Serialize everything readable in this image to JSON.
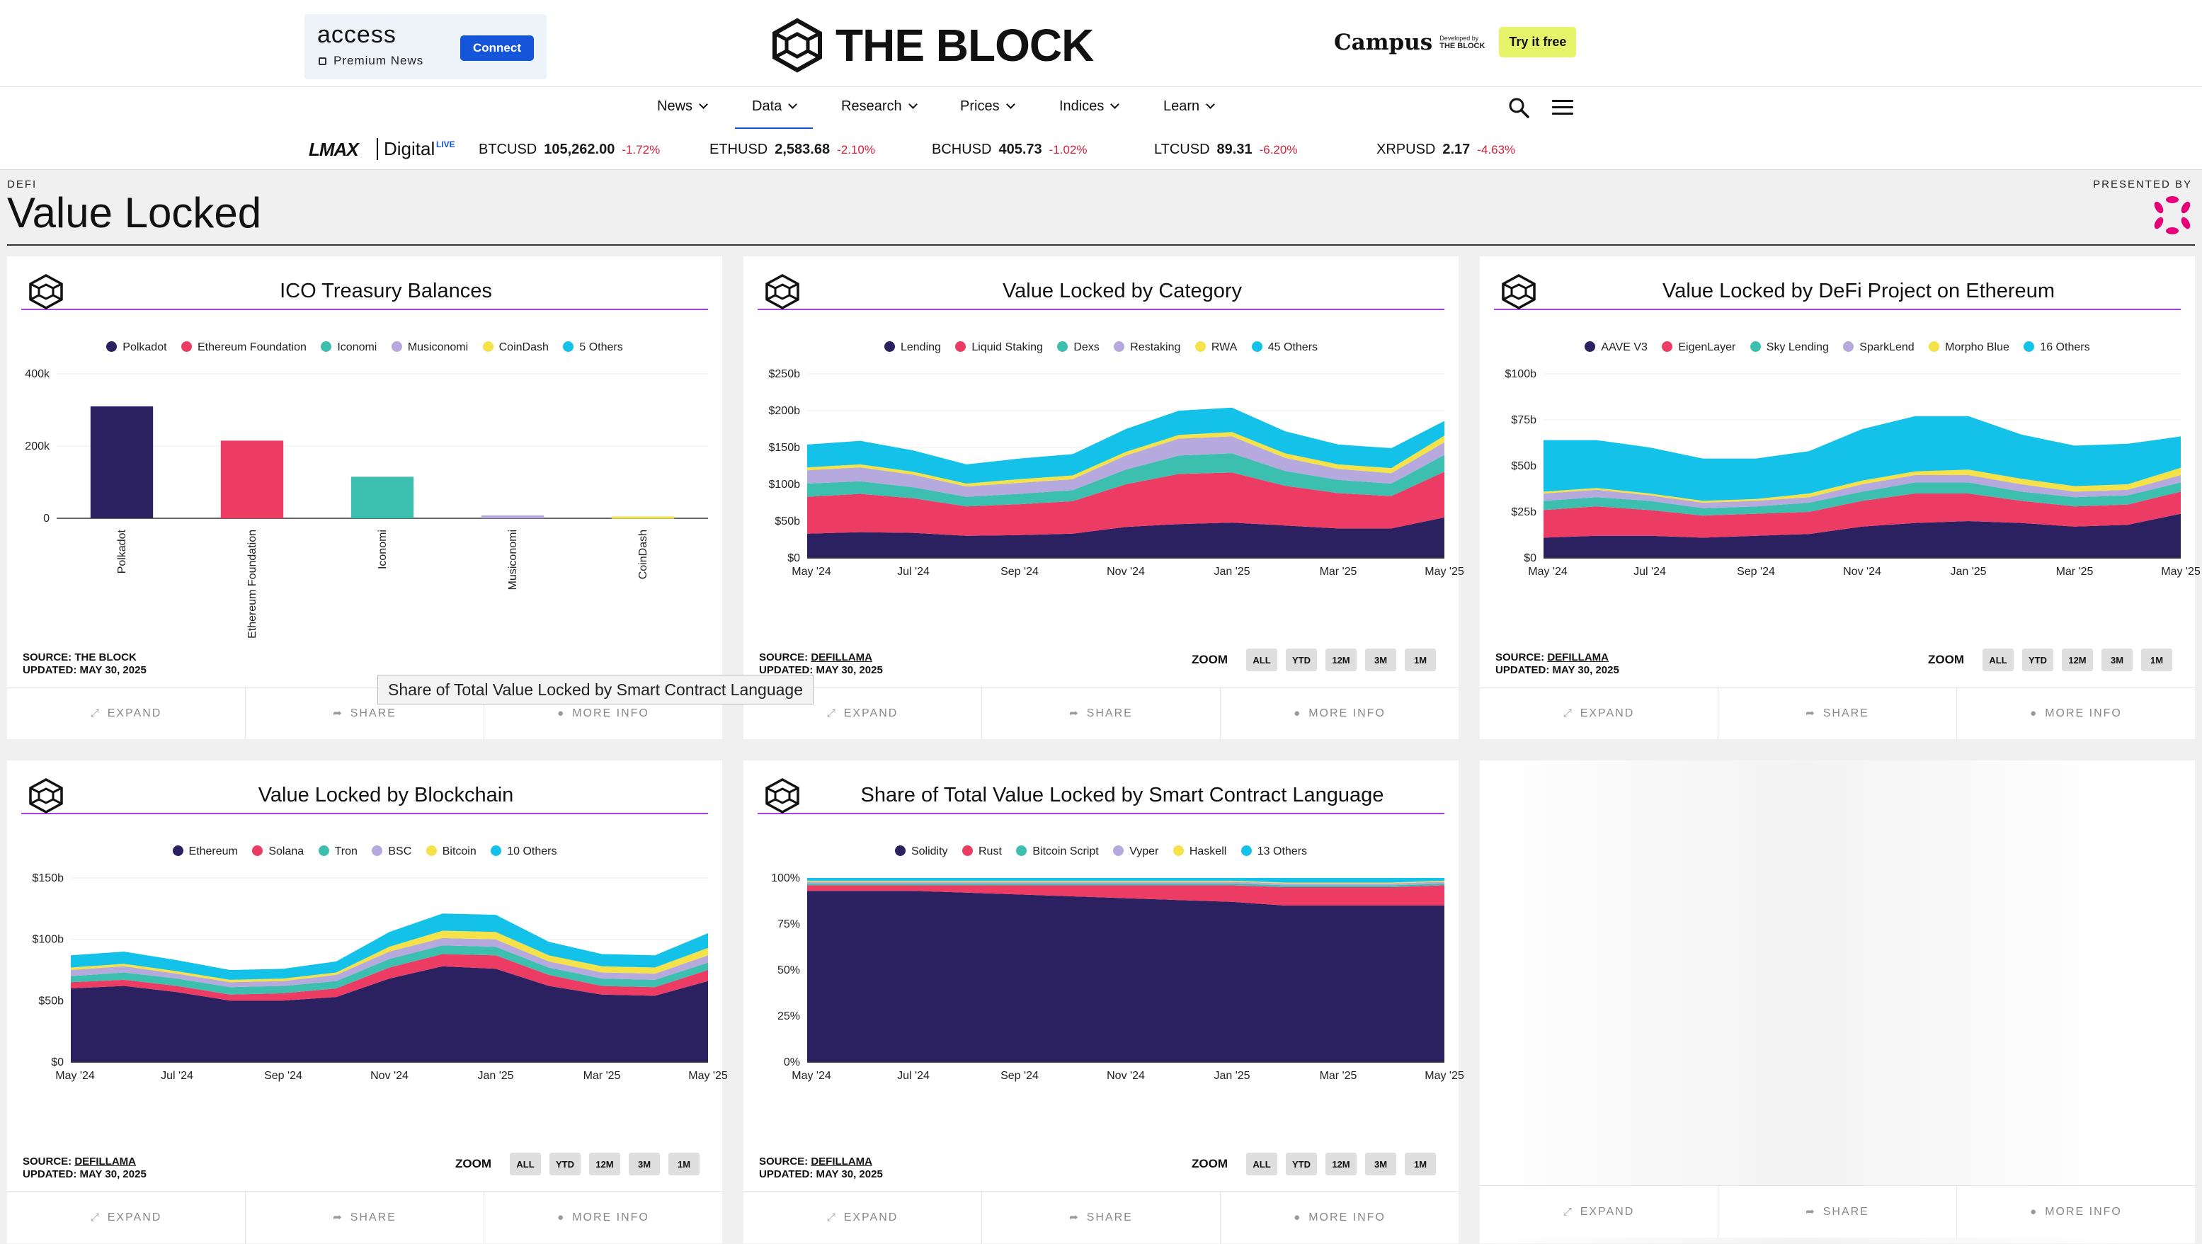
{
  "colors": {
    "c1": "#2b2060",
    "c2": "#ec3c64",
    "c3": "#3dbfb0",
    "c4": "#b5a9dd",
    "c5": "#f5e148",
    "c6": "#14c2e9",
    "accent": "#a544dd",
    "nav_active": "#1455d9",
    "negative": "#d21f3c"
  },
  "header": {
    "ad_brand": "access",
    "ad_sub": "Premium News",
    "ad_button": "Connect",
    "logo_text": "THE BLOCK",
    "campus_name": "Campus",
    "campus_by_small": "Developed by",
    "campus_by_brand": "THE BLOCK",
    "campus_button": "Try it free"
  },
  "nav": {
    "items": [
      "News",
      "Data",
      "Research",
      "Prices",
      "Indices",
      "Learn"
    ],
    "active": "Data"
  },
  "ticker": {
    "brand": "LMAX",
    "brand_sub": "Digital",
    "live": "LIVE",
    "quotes": [
      {
        "symbol": "BTCUSD",
        "price": "105,262.00",
        "change": "-1.72%"
      },
      {
        "symbol": "ETHUSD",
        "price": "2,583.68",
        "change": "-2.10%"
      },
      {
        "symbol": "BCHUSD",
        "price": "405.73",
        "change": "-1.02%"
      },
      {
        "symbol": "LTCUSD",
        "price": "89.31",
        "change": "-6.20%"
      },
      {
        "symbol": "XRPUSD",
        "price": "2.17",
        "change": "-4.63%"
      }
    ]
  },
  "page": {
    "category": "DEFI",
    "title": "Value Locked",
    "presented_by": "PRESENTED BY"
  },
  "footer_labels": {
    "expand": "EXPAND",
    "share": "SHARE",
    "more": "MORE INFO"
  },
  "zoom": {
    "label": "ZOOM",
    "buttons": [
      "ALL",
      "YTD",
      "12M",
      "3M",
      "1M"
    ]
  },
  "tooltip": "Share of Total Value Locked by Smart Contract Language",
  "cards": [
    {
      "title": "ICO Treasury Balances",
      "legend": [
        "Polkadot",
        "Ethereum Foundation",
        "Iconomi",
        "Musiconomi",
        "CoinDash",
        "5 Others"
      ],
      "source_label": "SOURCE:",
      "source": "THE BLOCK",
      "updated": "UPDATED: MAY 30, 2025"
    },
    {
      "title": "Value Locked by Category",
      "legend": [
        "Lending",
        "Liquid Staking",
        "Dexs",
        "Restaking",
        "RWA",
        "45 Others"
      ],
      "source_label": "SOURCE:",
      "source": "DEFILLAMA",
      "updated": "UPDATED: MAY 30, 2025"
    },
    {
      "title": "Value Locked by DeFi Project on Ethereum",
      "legend": [
        "AAVE V3",
        "EigenLayer",
        "Sky Lending",
        "SparkLend",
        "Morpho Blue",
        "16 Others"
      ],
      "source_label": "SOURCE:",
      "source": "DEFILLAMA",
      "updated": "UPDATED: MAY 30, 2025"
    },
    {
      "title": "Value Locked by Blockchain",
      "legend": [
        "Ethereum",
        "Solana",
        "Tron",
        "BSC",
        "Bitcoin",
        "10 Others"
      ],
      "source_label": "SOURCE:",
      "source": "DEFILLAMA",
      "updated": "UPDATED: MAY 30, 2025"
    },
    {
      "title": "Share of Total Value Locked by Smart Contract Language",
      "legend": [
        "Solidity",
        "Rust",
        "Bitcoin Script",
        "Vyper",
        "Haskell",
        "13 Others"
      ],
      "source_label": "SOURCE:",
      "source": "DEFILLAMA",
      "updated": "UPDATED: MAY 30, 2025"
    }
  ],
  "chart_data": [
    {
      "type": "bar",
      "title": "ICO Treasury Balances",
      "categories": [
        "Polkadot",
        "Ethereum Foundation",
        "Iconomi",
        "Musiconomi",
        "CoinDash"
      ],
      "values": [
        310000,
        215000,
        115000,
        8000,
        5000
      ],
      "y_ticks": [
        "0",
        "200k",
        "400k"
      ],
      "ylim": [
        0,
        400000
      ]
    },
    {
      "type": "area",
      "title": "Value Locked by Category",
      "stacked": true,
      "ylim": [
        0,
        250
      ],
      "y_ticks": [
        "$0",
        "$50b",
        "$100b",
        "$150b",
        "$200b",
        "$250b"
      ],
      "x_ticks": [
        "May '24",
        "Jul '24",
        "Sep '24",
        "Nov '24",
        "Jan '25",
        "Mar '25",
        "May '25"
      ],
      "x": [
        "May '24",
        "Jun '24",
        "Jul '24",
        "Aug '24",
        "Sep '24",
        "Oct '24",
        "Nov '24",
        "Dec '24",
        "Jan '25",
        "Feb '25",
        "Mar '25",
        "Apr '25",
        "May '25"
      ],
      "series": [
        {
          "name": "Lending",
          "values": [
            33,
            35,
            34,
            30,
            31,
            33,
            42,
            46,
            48,
            44,
            40,
            40,
            55
          ]
        },
        {
          "name": "Liquid Staking",
          "values": [
            50,
            52,
            47,
            40,
            42,
            44,
            58,
            68,
            68,
            54,
            48,
            44,
            62
          ]
        },
        {
          "name": "Dexs",
          "values": [
            18,
            17,
            15,
            13,
            14,
            15,
            20,
            25,
            26,
            20,
            18,
            17,
            23
          ]
        },
        {
          "name": "Restaking",
          "values": [
            18,
            19,
            17,
            14,
            15,
            15,
            19,
            23,
            23,
            18,
            15,
            14,
            17
          ]
        },
        {
          "name": "RWA",
          "values": [
            4,
            4,
            4,
            4,
            5,
            5,
            5,
            5,
            6,
            6,
            6,
            7,
            9
          ]
        },
        {
          "name": "45 Others",
          "values": [
            31,
            32,
            29,
            26,
            28,
            29,
            31,
            33,
            33,
            30,
            27,
            27,
            20
          ]
        }
      ]
    },
    {
      "type": "area",
      "title": "Value Locked by DeFi Project on Ethereum",
      "stacked": true,
      "ylim": [
        0,
        100
      ],
      "y_ticks": [
        "$0",
        "$25b",
        "$50b",
        "$75b",
        "$100b"
      ],
      "x_ticks": [
        "May '24",
        "Jul '24",
        "Sep '24",
        "Nov '24",
        "Jan '25",
        "Mar '25",
        "May '25"
      ],
      "x": [
        "May '24",
        "Jun '24",
        "Jul '24",
        "Aug '24",
        "Sep '24",
        "Oct '24",
        "Nov '24",
        "Dec '24",
        "Jan '25",
        "Feb '25",
        "Mar '25",
        "Apr '25",
        "May '25"
      ],
      "series": [
        {
          "name": "AAVE V3",
          "values": [
            11,
            12,
            12,
            11,
            12,
            13,
            17,
            19,
            20,
            19,
            17,
            18,
            24
          ]
        },
        {
          "name": "EigenLayer",
          "values": [
            15,
            16,
            14,
            12,
            12,
            12,
            14,
            16,
            15,
            12,
            11,
            11,
            12
          ]
        },
        {
          "name": "Sky Lending",
          "values": [
            5,
            5,
            5,
            4,
            4,
            5,
            5,
            6,
            6,
            5,
            5,
            5,
            5
          ]
        },
        {
          "name": "SparkLend",
          "values": [
            4,
            4,
            3,
            3,
            3,
            3,
            4,
            4,
            4,
            4,
            3,
            3,
            4
          ]
        },
        {
          "name": "Morpho Blue",
          "values": [
            1,
            1,
            1,
            1,
            1,
            2,
            2,
            2,
            3,
            3,
            3,
            3,
            4
          ]
        },
        {
          "name": "16 Others",
          "values": [
            28,
            26,
            25,
            23,
            22,
            23,
            28,
            30,
            29,
            24,
            22,
            22,
            17
          ]
        }
      ]
    },
    {
      "type": "area",
      "title": "Value Locked by Blockchain",
      "stacked": true,
      "ylim": [
        0,
        150
      ],
      "y_ticks": [
        "$0",
        "$50b",
        "$100b",
        "$150b"
      ],
      "x_ticks": [
        "May '24",
        "Jul '24",
        "Sep '24",
        "Nov '24",
        "Jan '25",
        "Mar '25",
        "May '25"
      ],
      "x": [
        "May '24",
        "Jun '24",
        "Jul '24",
        "Aug '24",
        "Sep '24",
        "Oct '24",
        "Nov '24",
        "Dec '24",
        "Jan '25",
        "Feb '25",
        "Mar '25",
        "Apr '25",
        "May '25"
      ],
      "series": [
        {
          "name": "Ethereum",
          "values": [
            60,
            62,
            57,
            50,
            50,
            53,
            68,
            78,
            76,
            62,
            55,
            54,
            66
          ]
        },
        {
          "name": "Solana",
          "values": [
            5,
            5,
            5,
            5,
            6,
            7,
            9,
            10,
            11,
            9,
            7,
            7,
            9
          ]
        },
        {
          "name": "Tron",
          "values": [
            5,
            6,
            6,
            6,
            6,
            6,
            7,
            7,
            7,
            6,
            6,
            6,
            6
          ]
        },
        {
          "name": "BSC",
          "values": [
            5,
            5,
            4,
            4,
            4,
            5,
            6,
            6,
            6,
            5,
            5,
            5,
            6
          ]
        },
        {
          "name": "Bitcoin",
          "values": [
            2,
            2,
            2,
            2,
            2,
            2,
            4,
            6,
            6,
            5,
            5,
            5,
            6
          ]
        },
        {
          "name": "10 Others",
          "values": [
            10,
            10,
            9,
            8,
            8,
            9,
            12,
            14,
            14,
            11,
            10,
            10,
            12
          ]
        }
      ]
    },
    {
      "type": "area",
      "title": "Share of Total Value Locked by Smart Contract Language",
      "stacked": true,
      "percent": true,
      "ylim": [
        0,
        100
      ],
      "y_ticks": [
        "0%",
        "25%",
        "50%",
        "75%",
        "100%"
      ],
      "x_ticks": [
        "May '24",
        "Jul '24",
        "Sep '24",
        "Nov '24",
        "Jan '25",
        "Mar '25",
        "May '25"
      ],
      "x": [
        "May '24",
        "Jun '24",
        "Jul '24",
        "Aug '24",
        "Sep '24",
        "Oct '24",
        "Nov '24",
        "Dec '24",
        "Jan '25",
        "Feb '25",
        "Mar '25",
        "Apr '25",
        "May '25"
      ],
      "series": [
        {
          "name": "Solidity",
          "values": [
            93,
            93,
            93,
            92,
            91,
            90,
            89,
            88,
            87,
            85,
            85,
            85,
            85
          ]
        },
        {
          "name": "Rust",
          "values": [
            3,
            3,
            3,
            4,
            5,
            6,
            7,
            8,
            9,
            10,
            10,
            10,
            11
          ]
        },
        {
          "name": "Bitcoin Script",
          "values": [
            1,
            1,
            1,
            1,
            1,
            1,
            1,
            1,
            1,
            1,
            1,
            1,
            1
          ]
        },
        {
          "name": "Vyper",
          "values": [
            1,
            1,
            1,
            1,
            1,
            1,
            1,
            1,
            1,
            1,
            1,
            1,
            1
          ]
        },
        {
          "name": "Haskell",
          "values": [
            0.5,
            0.5,
            0.5,
            0.5,
            0.5,
            0.5,
            0.5,
            0.5,
            0.5,
            0.5,
            0.5,
            0.5,
            0.5
          ]
        },
        {
          "name": "13 Others",
          "values": [
            1.5,
            1.5,
            1.5,
            1.5,
            1.5,
            1.5,
            1.5,
            1.5,
            1.5,
            2.5,
            2.5,
            2.5,
            1.5
          ]
        }
      ]
    }
  ]
}
